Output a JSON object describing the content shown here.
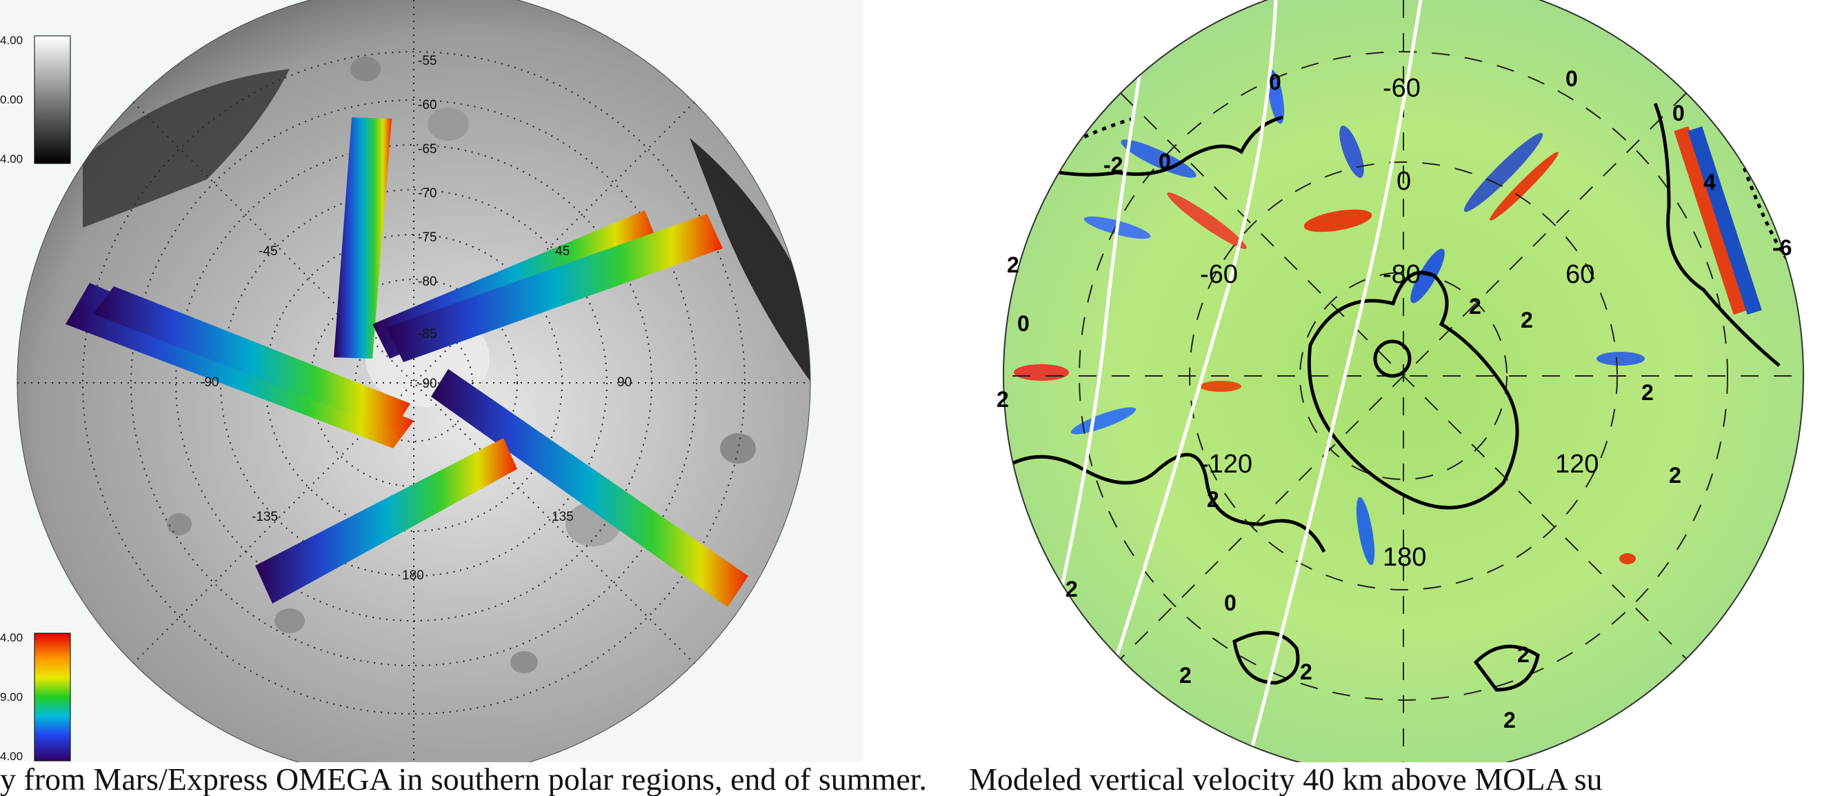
{
  "left_map": {
    "latitude_labels": [
      "-55",
      "-60",
      "-65",
      "-70",
      "-75",
      "-80",
      "-85",
      "-90"
    ],
    "longitude_labels": [
      "-45",
      "45",
      "-90",
      "90",
      "-135",
      "135",
      "180"
    ],
    "grayscale_colorbar": {
      "top": "4.00",
      "middle": "0.00",
      "bottom": "4.00"
    },
    "rainbow_colorbar": {
      "top": "4.00",
      "middle": "9.00",
      "bottom": "4.00"
    }
  },
  "right_map": {
    "longitude_labels": [
      "-60",
      "0",
      "60",
      "-120",
      "120",
      "180"
    ],
    "latitude_labels": [
      "-80",
      "-60"
    ],
    "contour_labels": [
      "2",
      "2",
      "2",
      "2",
      "2",
      "2",
      "2",
      "2",
      "2",
      "2",
      "2",
      "2",
      "-2",
      "0",
      "0",
      "0",
      "0",
      "0",
      "0",
      "4",
      "-6"
    ]
  },
  "caption": {
    "left": "y from Mars/Express OMEGA in southern polar regions, end of summer.",
    "right": "Modeled vertical velocity 40 km above MOLA su"
  },
  "colors": {
    "background_left": "#f4f8f4",
    "contour_line": "#000000",
    "track_line": "#ffffff"
  }
}
